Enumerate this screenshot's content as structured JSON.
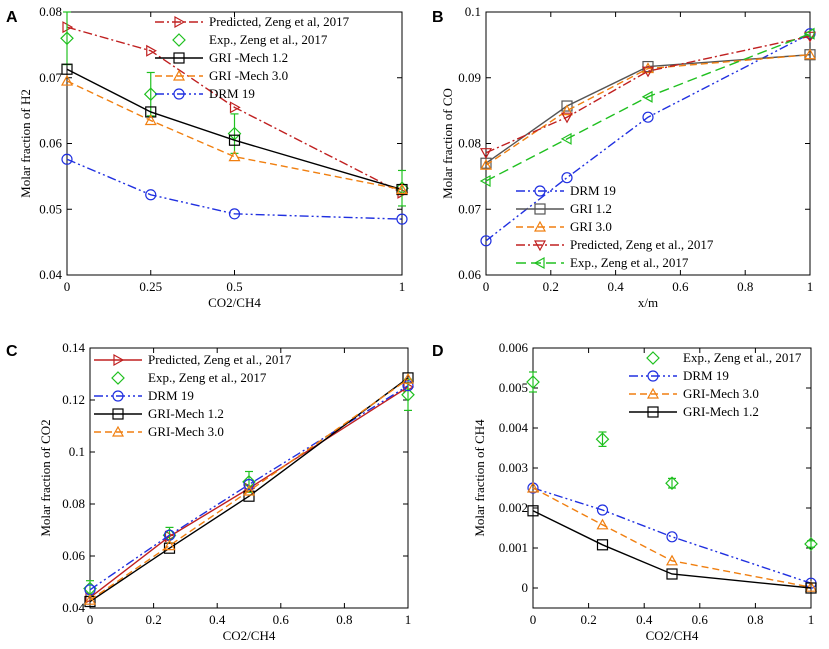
{
  "colors": {
    "grimech12": "#000000",
    "grimech30": "#f07f10",
    "drm19": "#2030e0",
    "predicted": "#c02020",
    "exp": "#20c020"
  },
  "chart_data": [
    {
      "panel": "A",
      "type": "line",
      "xlabel": "CO2/CH4",
      "ylabel": "Molar fraction of H2",
      "xlim": [
        0,
        1
      ],
      "ylim": [
        0.04,
        0.08
      ],
      "xticks": [
        "0",
        "0.25",
        "0.5",
        "1"
      ],
      "yticks": [
        "0.04",
        "0.05",
        "0.06",
        "0.07",
        "0.08"
      ],
      "legend_loc": "top-right",
      "series": [
        {
          "name": "Predicted, Zeng et al, 2017",
          "style": "predicted",
          "x": [
            0,
            0.25,
            0.5,
            1
          ],
          "y": [
            0.0777,
            0.0741,
            0.0655,
            0.0525
          ]
        },
        {
          "name": "Exp., Zeng et al., 2017",
          "style": "exp",
          "x": [
            0,
            0.25,
            0.5,
            1
          ],
          "y": [
            0.076,
            0.0675,
            0.0615,
            0.0532
          ],
          "err": [
            0.004,
            0.0033,
            0.003,
            0.0027
          ]
        },
        {
          "name": "GRI -Mech 1.2",
          "style": "grimech12",
          "x": [
            0,
            0.25,
            0.5,
            1
          ],
          "y": [
            0.0713,
            0.0648,
            0.0605,
            0.053
          ]
        },
        {
          "name": "GRI -Mech 3.0",
          "style": "grimech30",
          "x": [
            0,
            0.25,
            0.5,
            1
          ],
          "y": [
            0.0695,
            0.0635,
            0.058,
            0.053
          ]
        },
        {
          "name": "DRM 19",
          "style": "drm19",
          "x": [
            0,
            0.25,
            0.5,
            1
          ],
          "y": [
            0.0576,
            0.0522,
            0.0493,
            0.0485
          ]
        }
      ]
    },
    {
      "panel": "B",
      "type": "line",
      "xlabel": "x/m",
      "ylabel": "Molar fraction of CO",
      "xlim": [
        0,
        1
      ],
      "ylim": [
        0.06,
        0.1
      ],
      "xticks": [
        "0",
        "0.2",
        "0.4",
        "0.6",
        "0.8",
        "1"
      ],
      "yticks": [
        "0.06",
        "0.07",
        "0.08",
        "0.09",
        "0.1"
      ],
      "legend_loc": "bottom-right",
      "series": [
        {
          "name": "DRM 19",
          "style": "drm19",
          "x": [
            0,
            0.25,
            0.5,
            1
          ],
          "y": [
            0.0652,
            0.0748,
            0.084,
            0.0967
          ]
        },
        {
          "name": "GRI 1.2",
          "style": "gri12b",
          "x": [
            0,
            0.25,
            0.5,
            1
          ],
          "y": [
            0.077,
            0.0857,
            0.0917,
            0.0935
          ]
        },
        {
          "name": "GRI 3.0",
          "style": "grimech30",
          "x": [
            0,
            0.25,
            0.5,
            1
          ],
          "y": [
            0.0767,
            0.085,
            0.0914,
            0.0935
          ]
        },
        {
          "name": "Predicted, Zeng et al., 2017",
          "style": "predicted",
          "x": [
            0,
            0.25,
            0.5,
            1
          ],
          "y": [
            0.0786,
            0.084,
            0.091,
            0.0963
          ]
        },
        {
          "name": "Exp., Zeng et al., 2017",
          "style": "expB",
          "x": [
            0,
            0.25,
            0.5,
            1
          ],
          "y": [
            0.0743,
            0.0807,
            0.0871,
            0.0967
          ]
        }
      ]
    },
    {
      "panel": "C",
      "type": "line",
      "xlabel": "CO2/CH4",
      "ylabel": "Molar fraction of CO2",
      "xlim": [
        0,
        1
      ],
      "ylim": [
        0.04,
        0.14
      ],
      "xticks": [
        "0",
        "0.2",
        "0.4",
        "0.6",
        "0.8",
        "1"
      ],
      "yticks": [
        "0.04",
        "0.06",
        "0.08",
        "0.1",
        "0.12",
        "0.14"
      ],
      "legend_loc": "top-left",
      "series": [
        {
          "name": "Predicted, Zeng et al., 2017",
          "style": "predictedC",
          "x": [
            0,
            0.25,
            0.5,
            1
          ],
          "y": [
            0.044,
            0.0675,
            0.086,
            0.125
          ]
        },
        {
          "name": "Exp., Zeng et al., 2017",
          "style": "exp",
          "x": [
            0,
            0.25,
            0.5,
            1
          ],
          "y": [
            0.0475,
            0.068,
            0.0885,
            0.122
          ],
          "err": [
            0.003,
            0.003,
            0.004,
            0.006
          ]
        },
        {
          "name": "DRM 19",
          "style": "drm19",
          "x": [
            0,
            0.25,
            0.5,
            1
          ],
          "y": [
            0.047,
            0.068,
            0.0875,
            0.1255
          ]
        },
        {
          "name": "GRI-Mech 1.2",
          "style": "grimech12",
          "x": [
            0,
            0.25,
            0.5,
            1
          ],
          "y": [
            0.0425,
            0.063,
            0.083,
            0.1285
          ]
        },
        {
          "name": "GRI-Mech 3.0",
          "style": "grimech30",
          "x": [
            0,
            0.25,
            0.5,
            1
          ],
          "y": [
            0.043,
            0.064,
            0.085,
            0.128
          ]
        }
      ]
    },
    {
      "panel": "D",
      "type": "line",
      "xlabel": "CO2/CH4",
      "ylabel": "Molar fraction of CH4",
      "xlim": [
        0,
        1
      ],
      "ylim": [
        -0.0005,
        0.006
      ],
      "xticks": [
        "0",
        "0.2",
        "0.4",
        "0.6",
        "0.8",
        "1"
      ],
      "yticks": [
        "0",
        "0.001",
        "0.002",
        "0.003",
        "0.004",
        "0.005",
        "0.006"
      ],
      "legend_loc": "top-right",
      "series": [
        {
          "name": "Exp., Zeng et al., 2017",
          "style": "expD",
          "x": [
            0,
            0.25,
            0.5,
            1
          ],
          "y": [
            0.00515,
            0.00372,
            0.00262,
            0.0011
          ],
          "err": [
            0.00025,
            0.00018,
            0.00012,
            8e-05
          ]
        },
        {
          "name": "DRM 19",
          "style": "drm19",
          "x": [
            0,
            0.25,
            0.5,
            1
          ],
          "y": [
            0.0025,
            0.00195,
            0.00128,
            0.00012
          ]
        },
        {
          "name": "GRI-Mech 3.0",
          "style": "grimech30",
          "x": [
            0,
            0.25,
            0.5,
            1
          ],
          "y": [
            0.0025,
            0.00158,
            0.00068,
            2e-05
          ]
        },
        {
          "name": "GRI-Mech 1.2",
          "style": "grimech12",
          "x": [
            0,
            0.25,
            0.5,
            1
          ],
          "y": [
            0.00193,
            0.00108,
            0.00035,
            0.0
          ]
        }
      ]
    }
  ]
}
